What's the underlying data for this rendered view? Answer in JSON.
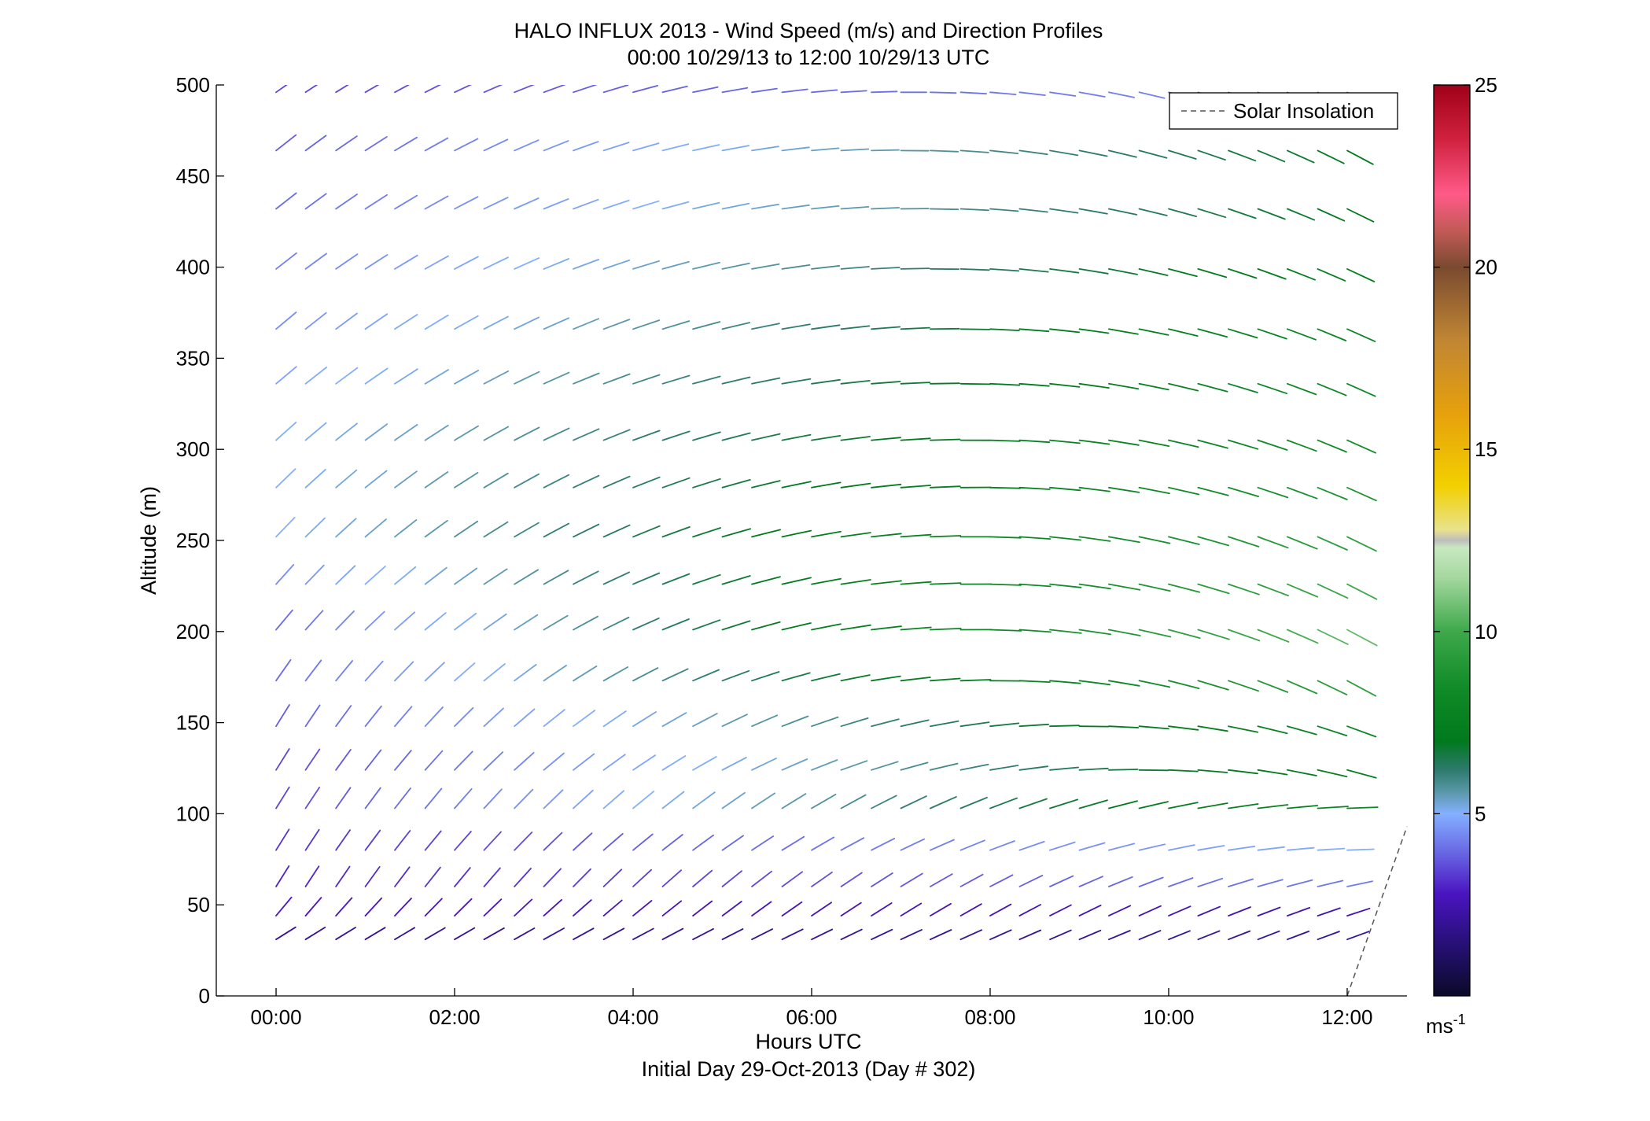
{
  "chart_data": {
    "type": "wind-barbs",
    "title": "HALO INFLUX 2013 - Wind Speed (m/s) and Direction Profiles",
    "subtitle": "00:00 10/29/13 to 12:00 10/29/13  UTC",
    "xlabel": "Hours UTC",
    "xlabel2": "Initial Day 29-Oct-2013 (Day # 302)",
    "ylabel": "Altitude (m)",
    "xlim": [
      -0.67,
      12.67
    ],
    "ylim": [
      0,
      500
    ],
    "x_ticks": [
      {
        "value": 0,
        "label": "00:00"
      },
      {
        "value": 2,
        "label": "02:00"
      },
      {
        "value": 4,
        "label": "04:00"
      },
      {
        "value": 6,
        "label": "06:00"
      },
      {
        "value": 8,
        "label": "08:00"
      },
      {
        "value": 10,
        "label": "10:00"
      },
      {
        "value": 12,
        "label": "12:00"
      }
    ],
    "y_ticks": [
      {
        "value": 0,
        "label": "0"
      },
      {
        "value": 50,
        "label": "50"
      },
      {
        "value": 100,
        "label": "100"
      },
      {
        "value": 150,
        "label": "150"
      },
      {
        "value": 200,
        "label": "200"
      },
      {
        "value": 250,
        "label": "250"
      },
      {
        "value": 300,
        "label": "300"
      },
      {
        "value": 350,
        "label": "350"
      },
      {
        "value": 400,
        "label": "400"
      },
      {
        "value": 450,
        "label": "450"
      },
      {
        "value": 500,
        "label": "500"
      }
    ],
    "legend": {
      "label": "Solar Insolation",
      "position": "top-right",
      "style": "dashed",
      "color": "#555555"
    },
    "solar_insolation": {
      "x": [
        12.0,
        12.67
      ],
      "y": [
        0,
        93
      ]
    },
    "colorbar": {
      "range": [
        0,
        25
      ],
      "ticks": [
        {
          "value": 5,
          "label": "5"
        },
        {
          "value": 10,
          "label": "10"
        },
        {
          "value": 15,
          "label": "15"
        },
        {
          "value": 20,
          "label": "20"
        },
        {
          "value": 25,
          "label": "25"
        }
      ],
      "unit_label": "ms",
      "unit_exponent": "-1",
      "stops": [
        {
          "v": 0,
          "c": "#0a0a28"
        },
        {
          "v": 1.5,
          "c": "#28107a"
        },
        {
          "v": 2.8,
          "c": "#4a14c0"
        },
        {
          "v": 4,
          "c": "#6a6ce6"
        },
        {
          "v": 5,
          "c": "#84b0ff"
        },
        {
          "v": 5.6,
          "c": "#5a98a8"
        },
        {
          "v": 6.2,
          "c": "#2e7a6e"
        },
        {
          "v": 7,
          "c": "#007a1c"
        },
        {
          "v": 8.5,
          "c": "#128c28"
        },
        {
          "v": 10,
          "c": "#3ea84a"
        },
        {
          "v": 11.5,
          "c": "#a6d8a0"
        },
        {
          "v": 12.3,
          "c": "#c8e8c0"
        },
        {
          "v": 12.5,
          "c": "#bdbdbd"
        },
        {
          "v": 12.8,
          "c": "#e9e28c"
        },
        {
          "v": 14,
          "c": "#f2d000"
        },
        {
          "v": 16,
          "c": "#e6a00c"
        },
        {
          "v": 18,
          "c": "#c08634"
        },
        {
          "v": 20,
          "c": "#7a4a30"
        },
        {
          "v": 21,
          "c": "#c25a56"
        },
        {
          "v": 22,
          "c": "#ff5a88"
        },
        {
          "v": 23.5,
          "c": "#d02240"
        },
        {
          "v": 25,
          "c": "#a00018"
        }
      ]
    },
    "barbs": {
      "times": [
        0,
        0.33,
        0.67,
        1.0,
        1.33,
        1.67,
        2.0,
        2.33,
        2.67,
        3.0,
        3.33,
        3.67,
        4.0,
        4.33,
        4.67,
        5.0,
        5.33,
        5.67,
        6.0,
        6.33,
        6.67,
        7.0,
        7.33,
        7.67,
        8.0,
        8.33,
        8.67,
        9.0,
        9.33,
        9.67,
        10.0,
        10.33,
        10.67,
        11.0,
        11.33,
        11.67,
        12.0
      ],
      "levels": [
        {
          "altitude": 496,
          "dir_start": 235,
          "dir_end": 295,
          "speed_start": 3.5,
          "speed_end": 4.5
        },
        {
          "altitude": 464,
          "dir_start": 232,
          "dir_end": 298,
          "speed_start": 3.8,
          "speed_end": 7.0
        },
        {
          "altitude": 432,
          "dir_start": 232,
          "dir_end": 296,
          "speed_start": 4.0,
          "speed_end": 7.0
        },
        {
          "altitude": 399,
          "dir_start": 232,
          "dir_end": 295,
          "speed_start": 4.3,
          "speed_end": 7.5
        },
        {
          "altitude": 366,
          "dir_start": 230,
          "dir_end": 294,
          "speed_start": 4.5,
          "speed_end": 8.0
        },
        {
          "altitude": 336,
          "dir_start": 230,
          "dir_end": 294,
          "speed_start": 4.8,
          "speed_end": 8.2
        },
        {
          "altitude": 305,
          "dir_start": 228,
          "dir_end": 294,
          "speed_start": 5.0,
          "speed_end": 8.5
        },
        {
          "altitude": 279,
          "dir_start": 226,
          "dir_end": 294,
          "speed_start": 5.0,
          "speed_end": 9.0
        },
        {
          "altitude": 252,
          "dir_start": 224,
          "dir_end": 296,
          "speed_start": 5.0,
          "speed_end": 9.5
        },
        {
          "altitude": 226,
          "dir_start": 222,
          "dir_end": 297,
          "speed_start": 4.5,
          "speed_end": 10.0
        },
        {
          "altitude": 201,
          "dir_start": 220,
          "dir_end": 298,
          "speed_start": 4.0,
          "speed_end": 10.5
        },
        {
          "altitude": 173,
          "dir_start": 215,
          "dir_end": 298,
          "speed_start": 4.0,
          "speed_end": 9.5
        },
        {
          "altitude": 148,
          "dir_start": 212,
          "dir_end": 290,
          "speed_start": 3.8,
          "speed_end": 8.0
        },
        {
          "altitude": 124,
          "dir_start": 212,
          "dir_end": 285,
          "speed_start": 3.5,
          "speed_end": 7.5
        },
        {
          "altitude": 103,
          "dir_start": 212,
          "dir_end": 268,
          "speed_start": 3.5,
          "speed_end": 8.0
        },
        {
          "altitude": 80,
          "dir_start": 212,
          "dir_end": 268,
          "speed_start": 3.2,
          "speed_end": 5.0
        },
        {
          "altitude": 60,
          "dir_start": 212,
          "dir_end": 258,
          "speed_start": 3.0,
          "speed_end": 4.2
        },
        {
          "altitude": 44,
          "dir_start": 220,
          "dir_end": 252,
          "speed_start": 2.8,
          "speed_end": 2.5
        },
        {
          "altitude": 31,
          "dir_start": 238,
          "dir_end": 250,
          "speed_start": 2.0,
          "speed_end": 2.0
        }
      ]
    }
  }
}
